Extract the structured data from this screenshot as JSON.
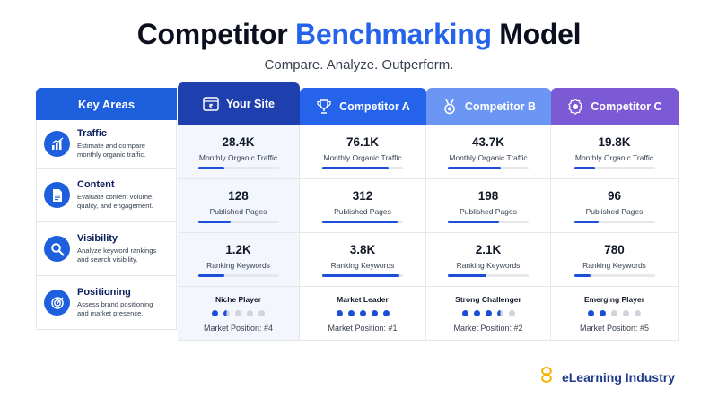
{
  "title": {
    "main": "Competitor",
    "accent": "Benchmarking",
    "tail": "Model"
  },
  "subtitle": "Compare. Analyze. Outperform.",
  "key_header": "Key Areas",
  "columns": [
    {
      "name": "Your Site",
      "icon": "browser-window-icon"
    },
    {
      "name": "Competitor A",
      "icon": "trophy-icon"
    },
    {
      "name": "Competitor B",
      "icon": "medal-icon"
    },
    {
      "name": "Competitor C",
      "icon": "award-badge-icon"
    }
  ],
  "rows": [
    {
      "title": "Traffic",
      "desc1": "Estimate and compare",
      "desc2": "monthly organic traffic.",
      "icon": "chart-icon",
      "metric": "Monthly Organic Traffic"
    },
    {
      "title": "Content",
      "desc1": "Evaluate content volume,",
      "desc2": "quality, and engagement.",
      "icon": "document-icon",
      "metric": "Published Pages"
    },
    {
      "title": "Visibility",
      "desc1": "Analyze keyword rankings",
      "desc2": "and search visibility.",
      "icon": "magnifier-icon",
      "metric": "Ranking Keywords"
    },
    {
      "title": "Positioning",
      "desc1": "Assess brand positioning",
      "desc2": "and market presence.",
      "icon": "target-icon"
    }
  ],
  "values": {
    "traffic": [
      "28.4K",
      "76.1K",
      "43.7K",
      "19.8K"
    ],
    "content": [
      "128",
      "312",
      "198",
      "96"
    ],
    "visibility": [
      "1.2K",
      "3.8K",
      "2.1K",
      "780"
    ]
  },
  "bars": {
    "traffic": [
      0.33,
      0.82,
      0.66,
      0.26
    ],
    "content": [
      0.4,
      0.93,
      0.63,
      0.31
    ],
    "visibility": [
      0.33,
      0.95,
      0.48,
      0.2
    ]
  },
  "positioning": {
    "labels": [
      "Niche Player",
      "Market Leader",
      "Strong Challenger",
      "Emerging Player"
    ],
    "ratings": [
      1.5,
      5,
      3.5,
      2
    ],
    "markets": [
      "Market Position: #4",
      "Market Position: #1",
      "Market Position: #2",
      "Market Position: #5"
    ]
  },
  "brand": "eLearning Industry",
  "colors": {
    "accent": "#2563eb",
    "your_site": "#1e40af",
    "competitor_a": "#2563eb",
    "competitor_b": "#6b96f4",
    "competitor_c": "#7c5ad6"
  }
}
